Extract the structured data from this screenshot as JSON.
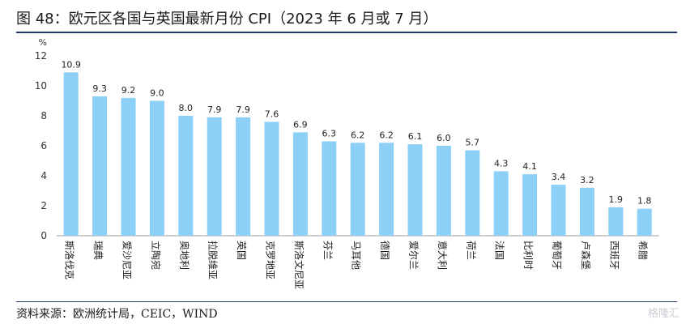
{
  "title": "图 48：欧元区各国与英国最新月份 CPI（2023 年 6 月或 7 月）",
  "source": "资料来源：欧洲统计局，CEIC，WIND",
  "watermark": "格隆汇",
  "bar_color": "#8ccff7",
  "chart_data": {
    "type": "bar",
    "title": "",
    "unit_label": "%",
    "ylim": [
      0,
      12
    ],
    "yticks": [
      0,
      2,
      4,
      6,
      8,
      10,
      12
    ],
    "grid": false,
    "categories": [
      "斯洛伐克",
      "瑞典",
      "爱沙尼亚",
      "立陶宛",
      "奥地利",
      "拉脱维亚",
      "英国",
      "克罗地亚",
      "斯洛文尼亚",
      "芬兰",
      "马耳他",
      "德国",
      "爱尔兰",
      "意大利",
      "荷兰",
      "法国",
      "比利时",
      "葡萄牙",
      "卢森堡",
      "西班牙",
      "希腊"
    ],
    "values": [
      10.9,
      9.3,
      9.2,
      9.0,
      8.0,
      7.9,
      7.9,
      7.6,
      6.9,
      6.3,
      6.2,
      6.2,
      6.1,
      6.0,
      5.7,
      4.3,
      4.1,
      3.4,
      3.2,
      1.9,
      1.8
    ],
    "value_labels": [
      "10.9",
      "9.3",
      "9.2",
      "9.0",
      "8.0",
      "7.9",
      "7.9",
      "7.6",
      "6.9",
      "6.3",
      "6.2",
      "6.2",
      "6.1",
      "6.0",
      "5.7",
      "4.3",
      "4.1",
      "3.4",
      "3.2",
      "1.9",
      "1.8"
    ]
  }
}
